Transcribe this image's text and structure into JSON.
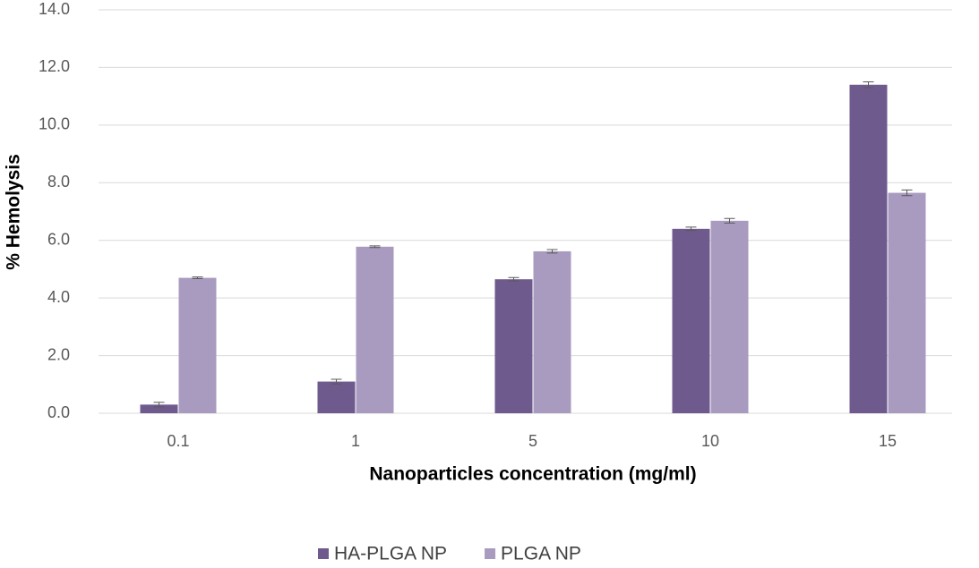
{
  "chart_data": {
    "type": "bar",
    "x_label": "Nanoparticles concentration (mg/ml)",
    "y_label": "% Hemolysis",
    "categories": [
      "0.1",
      "1",
      "5",
      "10",
      "15"
    ],
    "series": [
      {
        "name": "HA-PLGA NP",
        "color": "#6f5a8e",
        "values": [
          0.3,
          1.1,
          4.65,
          6.4,
          11.4
        ],
        "errors": [
          0.08,
          0.08,
          0.06,
          0.06,
          0.1
        ]
      },
      {
        "name": "PLGA NP",
        "color": "#a99bc0",
        "values": [
          4.7,
          5.78,
          5.62,
          6.68,
          7.65
        ],
        "errors": [
          0.03,
          0.03,
          0.06,
          0.08,
          0.1
        ]
      }
    ],
    "ylim": [
      0,
      14
    ],
    "yticks": [
      {
        "value": 0,
        "label": "0.0"
      },
      {
        "value": 2,
        "label": "2.0"
      },
      {
        "value": 4,
        "label": "4.0"
      },
      {
        "value": 6,
        "label": "6.0"
      },
      {
        "value": 8,
        "label": "8.0"
      },
      {
        "value": 10,
        "label": "10.0"
      },
      {
        "value": 12,
        "label": "12.0"
      },
      {
        "value": 14,
        "label": "14.0"
      }
    ],
    "grid": true,
    "legend": "bottom"
  }
}
